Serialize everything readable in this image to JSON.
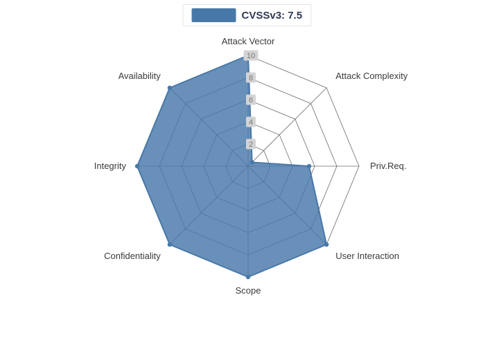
{
  "page": {
    "background": "#ffffff"
  },
  "legend": {
    "label": "CVSSv3: 7.5",
    "swatch_color": "#4878a8"
  },
  "chart_data": {
    "type": "radar",
    "title": "CVSSv3: 7.5",
    "legend_position": "top-center",
    "axes": [
      "Attack Vector",
      "Attack Complexity",
      "Priv.Req.",
      "User Interaction",
      "Scope",
      "Confidentiality",
      "Integrity",
      "Availability"
    ],
    "series": [
      {
        "name": "CVSSv3: 7.5",
        "values": [
          10,
          0.5,
          5.5,
          10,
          10,
          10,
          10,
          10
        ],
        "color": "#4878a8",
        "fill_opacity": 0.82
      }
    ],
    "ticks": [
      2,
      4,
      6,
      8,
      10
    ],
    "max": 10,
    "rings": 5,
    "grid_shape": "polygon",
    "grid_color": "#6b6b6b",
    "tick_label_color": "#777777",
    "tick_label_bg": "#d4d4d4",
    "axis_label_color": "#3a3a3a"
  }
}
